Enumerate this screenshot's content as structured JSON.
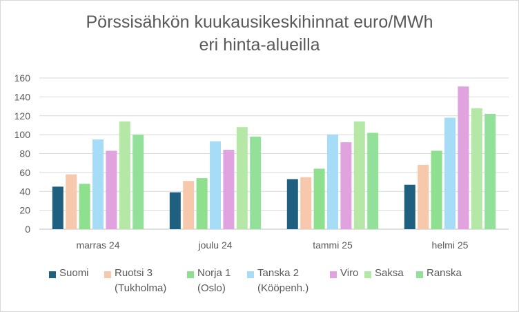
{
  "chart_data": {
    "type": "bar",
    "title_line1": "Pörssisähkön kuukausikeskihinnat euro/MWh",
    "title_line2": "eri hinta-alueilla",
    "categories": [
      "marras 24",
      "joulu 24",
      "tammi 25",
      "helmi 25"
    ],
    "ylim": [
      0,
      160
    ],
    "yticks": [
      "0",
      "20",
      "40",
      "60",
      "80",
      "100",
      "120",
      "140",
      "160"
    ],
    "grid": true,
    "legend_position": "bottom",
    "series": [
      {
        "name": "Suomi",
        "color": "#1f5f7f",
        "values": [
          45,
          39,
          53,
          47
        ]
      },
      {
        "name": "Ruotsi 3\n(Tukholma)",
        "color": "#f7c8ab",
        "values": [
          58,
          51,
          55,
          68
        ]
      },
      {
        "name": "Norja 1\n(Oslo)",
        "color": "#8ee08e",
        "values": [
          48,
          54,
          64,
          83
        ]
      },
      {
        "name": "Tanska 2\n(Kööpenh.)",
        "color": "#a6dcf6",
        "values": [
          95,
          93,
          100,
          118
        ]
      },
      {
        "name": "Viro",
        "color": "#e0a3e0",
        "values": [
          83,
          84,
          92,
          151
        ]
      },
      {
        "name": "Saksa",
        "color": "#b5e8a6",
        "values": [
          114,
          108,
          114,
          128
        ]
      },
      {
        "name": "Ranska",
        "color": "#93e09b",
        "values": [
          100,
          98,
          102,
          122
        ]
      }
    ]
  }
}
